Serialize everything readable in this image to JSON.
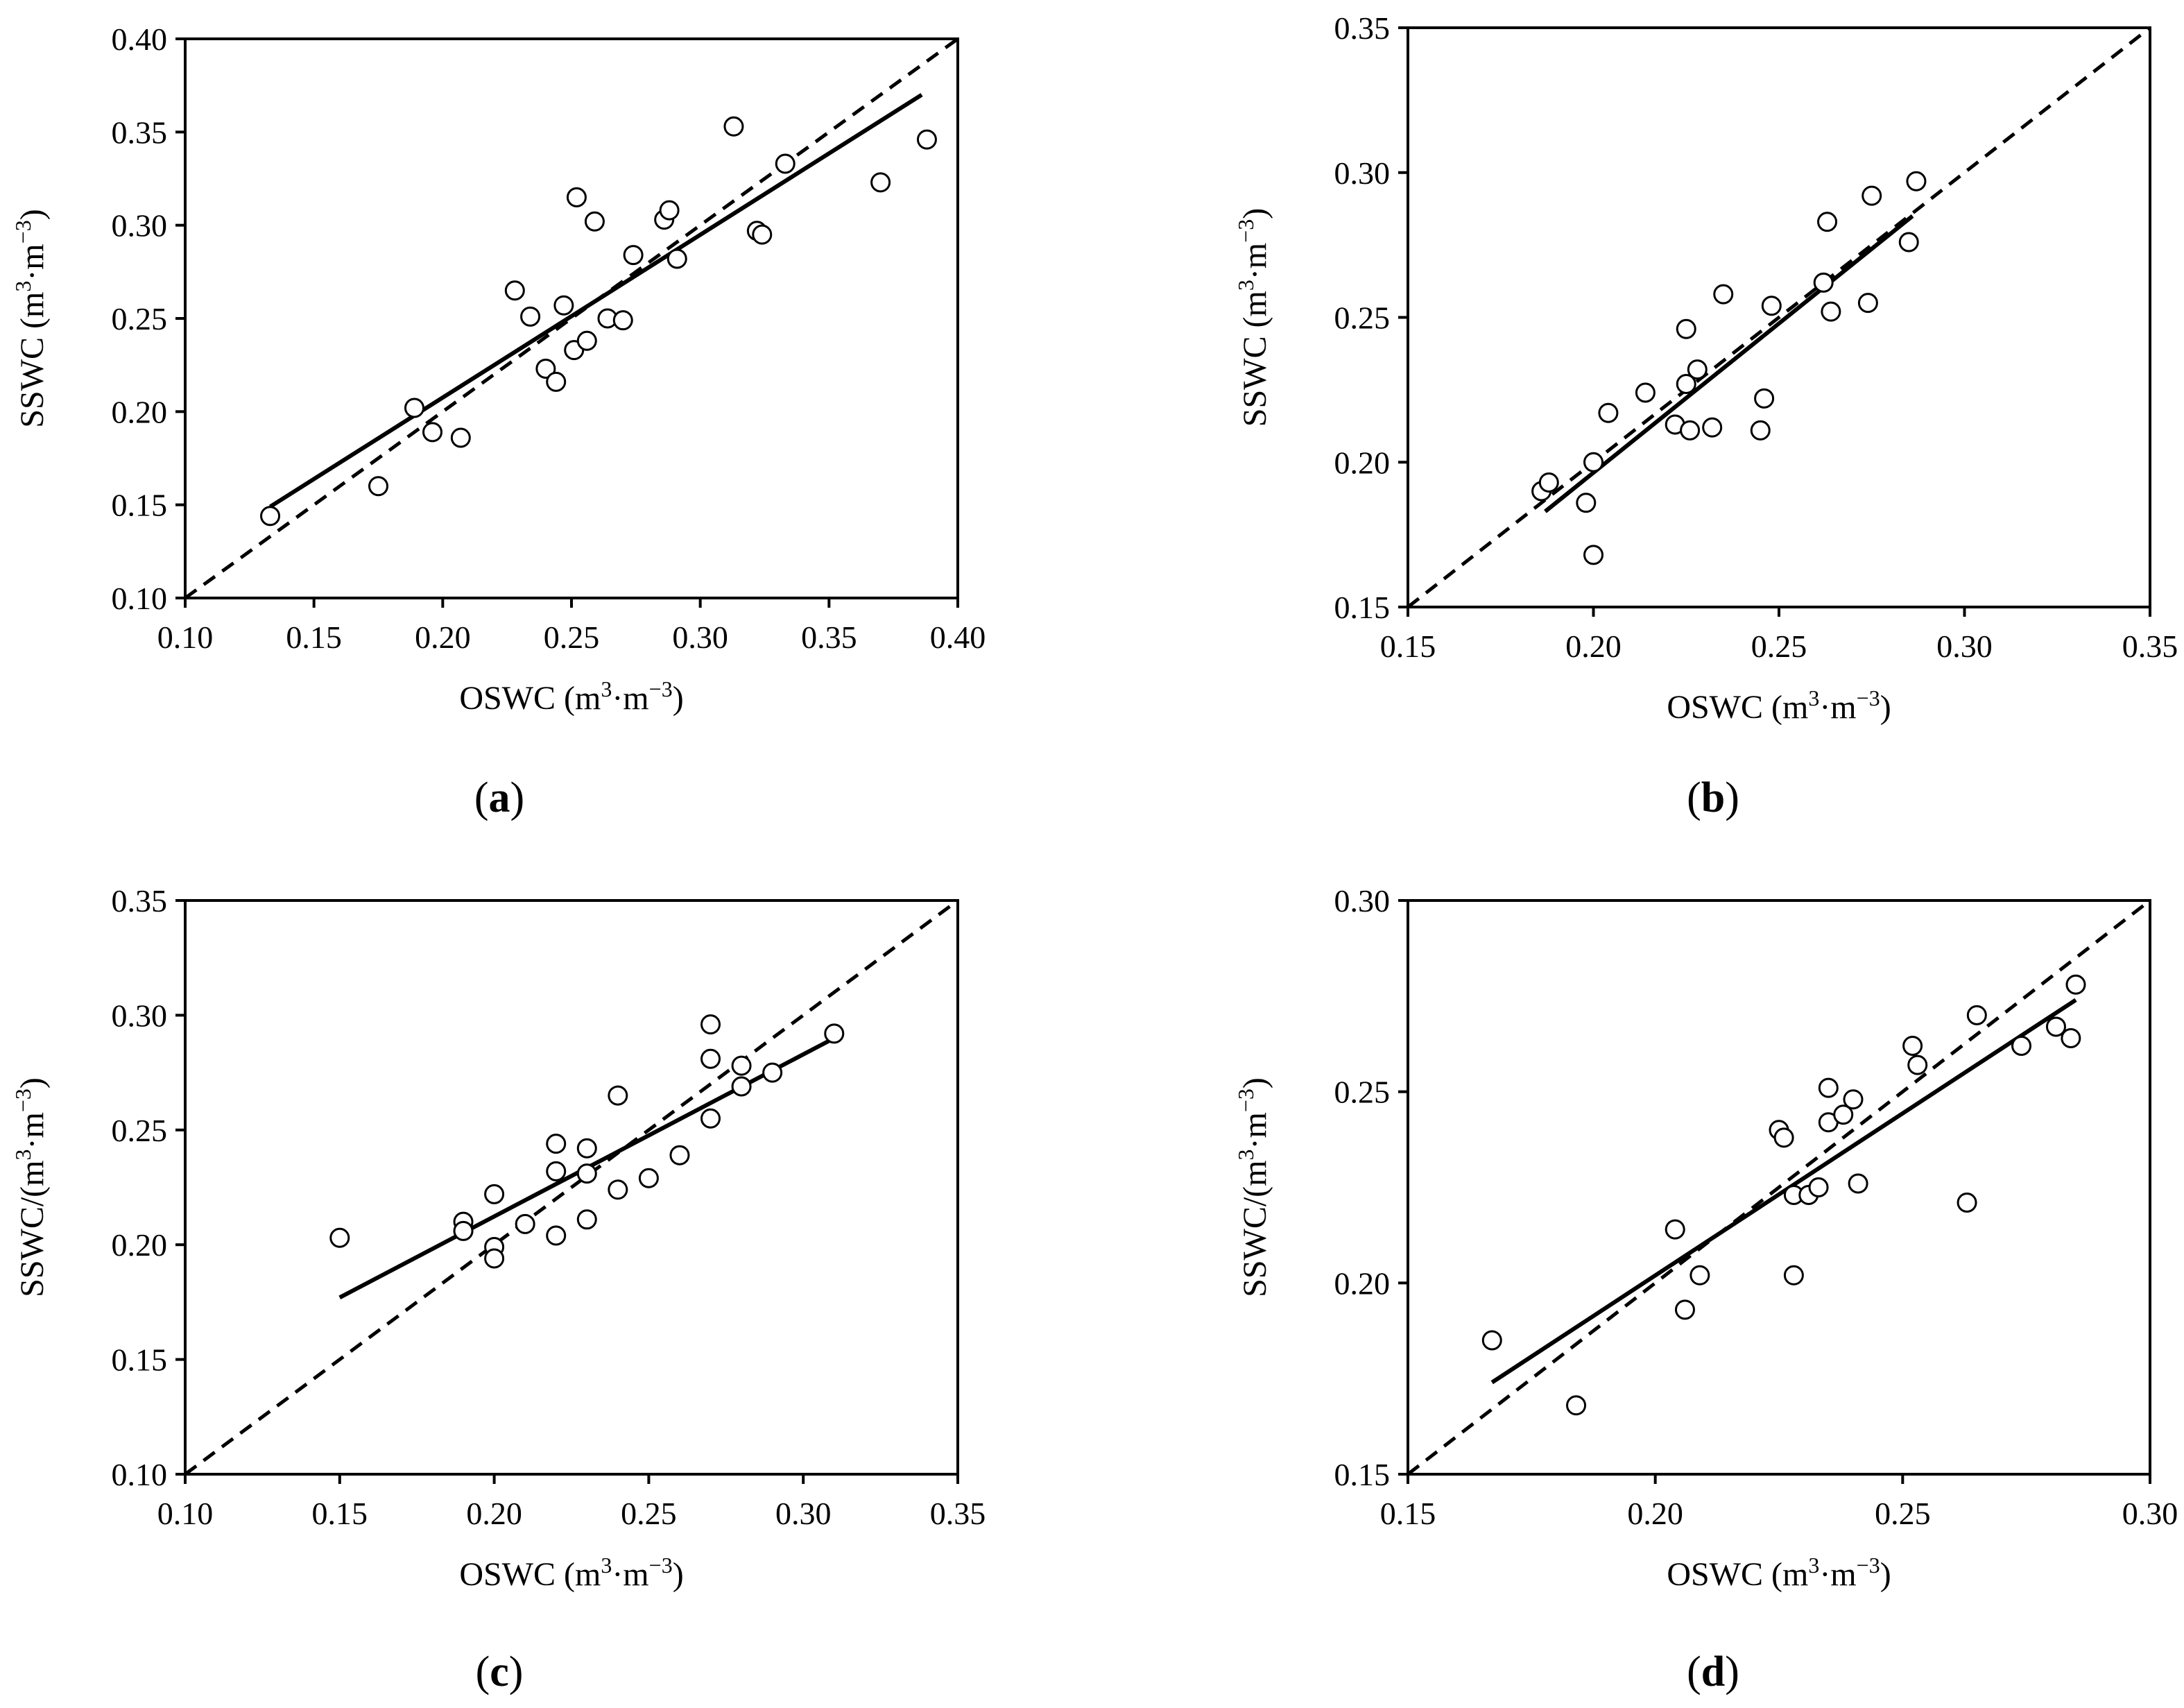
{
  "chart_data": [
    {
      "id": "a",
      "type": "scatter",
      "panel_label": "a",
      "xlabel": "OSWC (m³·m⁻³)",
      "ylabel": "SSWC (m³·m⁻³)",
      "xlim": [
        0.1,
        0.4
      ],
      "ylim": [
        0.1,
        0.4
      ],
      "x_ticks": [
        "0.10",
        "0.15",
        "0.20",
        "0.25",
        "0.30",
        "0.35",
        "0.40"
      ],
      "y_ticks": [
        "0.10",
        "0.15",
        "0.20",
        "0.25",
        "0.30",
        "0.35",
        "0.40"
      ],
      "points": [
        [
          0.133,
          0.144
        ],
        [
          0.175,
          0.16
        ],
        [
          0.189,
          0.202
        ],
        [
          0.196,
          0.189
        ],
        [
          0.207,
          0.186
        ],
        [
          0.228,
          0.265
        ],
        [
          0.234,
          0.251
        ],
        [
          0.24,
          0.223
        ],
        [
          0.244,
          0.216
        ],
        [
          0.247,
          0.257
        ],
        [
          0.251,
          0.233
        ],
        [
          0.252,
          0.315
        ],
        [
          0.256,
          0.238
        ],
        [
          0.259,
          0.302
        ],
        [
          0.264,
          0.25
        ],
        [
          0.27,
          0.249
        ],
        [
          0.274,
          0.284
        ],
        [
          0.286,
          0.303
        ],
        [
          0.288,
          0.308
        ],
        [
          0.291,
          0.282
        ],
        [
          0.313,
          0.353
        ],
        [
          0.322,
          0.297
        ],
        [
          0.324,
          0.295
        ],
        [
          0.333,
          0.333
        ],
        [
          0.37,
          0.323
        ],
        [
          0.388,
          0.346
        ]
      ],
      "fit_line": [
        [
          0.133,
          0.149
        ],
        [
          0.386,
          0.37
        ]
      ],
      "one_to_one": [
        [
          0.1,
          0.1
        ],
        [
          0.4,
          0.4
        ]
      ]
    },
    {
      "id": "b",
      "type": "scatter",
      "panel_label": "b",
      "xlabel": "OSWC (m³·m⁻³)",
      "ylabel": "SSWC (m³·m⁻³)",
      "xlim": [
        0.15,
        0.35
      ],
      "ylim": [
        0.15,
        0.35
      ],
      "x_ticks": [
        "0.15",
        "0.20",
        "0.25",
        "0.30",
        "0.35"
      ],
      "y_ticks": [
        "0.15",
        "0.20",
        "0.25",
        "0.30",
        "0.35"
      ],
      "points": [
        [
          0.186,
          0.19
        ],
        [
          0.188,
          0.193
        ],
        [
          0.198,
          0.186
        ],
        [
          0.2,
          0.2
        ],
        [
          0.2,
          0.168
        ],
        [
          0.204,
          0.217
        ],
        [
          0.214,
          0.224
        ],
        [
          0.222,
          0.213
        ],
        [
          0.225,
          0.227
        ],
        [
          0.225,
          0.246
        ],
        [
          0.226,
          0.211
        ],
        [
          0.228,
          0.232
        ],
        [
          0.232,
          0.212
        ],
        [
          0.235,
          0.258
        ],
        [
          0.245,
          0.211
        ],
        [
          0.246,
          0.222
        ],
        [
          0.248,
          0.254
        ],
        [
          0.262,
          0.262
        ],
        [
          0.263,
          0.283
        ],
        [
          0.264,
          0.252
        ],
        [
          0.274,
          0.255
        ],
        [
          0.275,
          0.292
        ],
        [
          0.285,
          0.276
        ],
        [
          0.287,
          0.297
        ]
      ],
      "fit_line": [
        [
          0.187,
          0.183
        ],
        [
          0.286,
          0.285
        ]
      ],
      "one_to_one": [
        [
          0.15,
          0.15
        ],
        [
          0.35,
          0.35
        ]
      ]
    },
    {
      "id": "c",
      "type": "scatter",
      "panel_label": "c",
      "xlabel": "OSWC (m³·m⁻³)",
      "ylabel": "SSWC/(m³·m⁻³)",
      "xlim": [
        0.1,
        0.35
      ],
      "ylim": [
        0.1,
        0.35
      ],
      "x_ticks": [
        "0.10",
        "0.15",
        "0.20",
        "0.25",
        "0.30",
        "0.35"
      ],
      "y_ticks": [
        "0.10",
        "0.15",
        "0.20",
        "0.25",
        "0.30",
        "0.35"
      ],
      "points": [
        [
          0.15,
          0.203
        ],
        [
          0.19,
          0.21
        ],
        [
          0.19,
          0.206
        ],
        [
          0.2,
          0.222
        ],
        [
          0.2,
          0.199
        ],
        [
          0.2,
          0.194
        ],
        [
          0.21,
          0.209
        ],
        [
          0.22,
          0.244
        ],
        [
          0.22,
          0.232
        ],
        [
          0.22,
          0.204
        ],
        [
          0.23,
          0.242
        ],
        [
          0.23,
          0.231
        ],
        [
          0.23,
          0.211
        ],
        [
          0.24,
          0.265
        ],
        [
          0.24,
          0.224
        ],
        [
          0.25,
          0.229
        ],
        [
          0.26,
          0.239
        ],
        [
          0.27,
          0.296
        ],
        [
          0.27,
          0.281
        ],
        [
          0.27,
          0.255
        ],
        [
          0.28,
          0.278
        ],
        [
          0.28,
          0.269
        ],
        [
          0.29,
          0.275
        ],
        [
          0.31,
          0.292
        ]
      ],
      "fit_line": [
        [
          0.15,
          0.177
        ],
        [
          0.31,
          0.29
        ]
      ],
      "one_to_one": [
        [
          0.1,
          0.1
        ],
        [
          0.35,
          0.35
        ]
      ]
    },
    {
      "id": "d",
      "type": "scatter",
      "panel_label": "d",
      "xlabel": "OSWC (m³·m⁻³)",
      "ylabel": "SSWC/(m³·m⁻³)",
      "xlim": [
        0.15,
        0.3
      ],
      "ylim": [
        0.15,
        0.3
      ],
      "x_ticks": [
        "0.15",
        "0.20",
        "0.25",
        "0.30"
      ],
      "y_ticks": [
        "0.15",
        "0.20",
        "0.25",
        "0.30"
      ],
      "points": [
        [
          0.167,
          0.185
        ],
        [
          0.184,
          0.168
        ],
        [
          0.204,
          0.214
        ],
        [
          0.206,
          0.193
        ],
        [
          0.209,
          0.202
        ],
        [
          0.225,
          0.24
        ],
        [
          0.226,
          0.238
        ],
        [
          0.228,
          0.202
        ],
        [
          0.228,
          0.223
        ],
        [
          0.231,
          0.223
        ],
        [
          0.233,
          0.225
        ],
        [
          0.235,
          0.251
        ],
        [
          0.235,
          0.242
        ],
        [
          0.238,
          0.244
        ],
        [
          0.24,
          0.248
        ],
        [
          0.241,
          0.226
        ],
        [
          0.252,
          0.262
        ],
        [
          0.253,
          0.257
        ],
        [
          0.263,
          0.221
        ],
        [
          0.265,
          0.27
        ],
        [
          0.274,
          0.262
        ],
        [
          0.281,
          0.267
        ],
        [
          0.284,
          0.264
        ],
        [
          0.285,
          0.278
        ]
      ],
      "fit_line": [
        [
          0.167,
          0.174
        ],
        [
          0.285,
          0.274
        ]
      ],
      "one_to_one": [
        [
          0.15,
          0.15
        ],
        [
          0.3,
          0.3
        ]
      ]
    }
  ]
}
